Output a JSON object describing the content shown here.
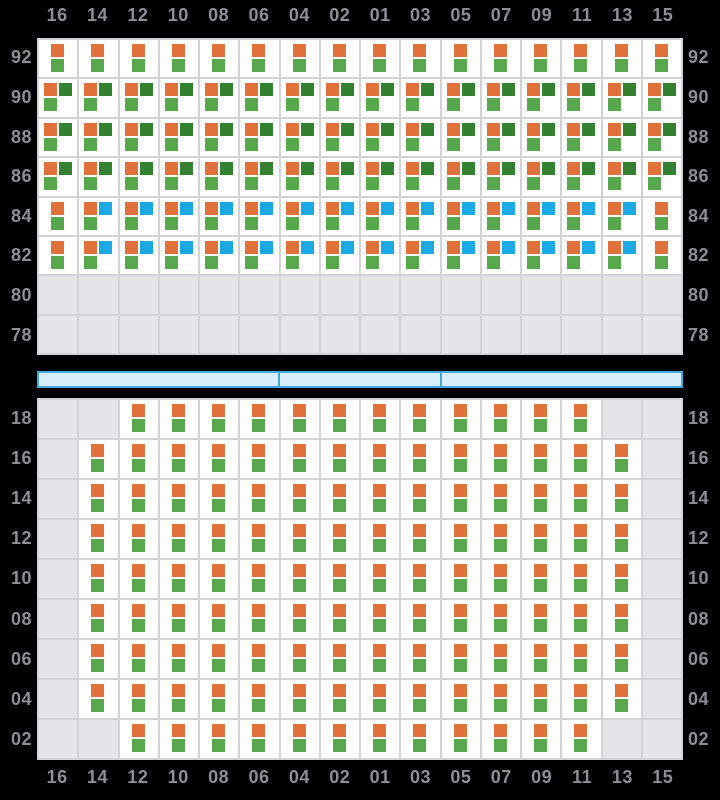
{
  "colors": {
    "background": "#000000",
    "label": "#8e8e94",
    "grid_line": "#d3d3d7",
    "cell_bg": "#ffffff",
    "empty_cell": "#e5e5e8",
    "orange": "#e0713b",
    "green": "#57a84d",
    "darkgreen": "#338131",
    "blue": "#1aa9e3",
    "hatch_fill": "#d9eefb",
    "hatch_border": "#41a9db"
  },
  "columns": [
    "16",
    "14",
    "12",
    "10",
    "08",
    "06",
    "04",
    "02",
    "01",
    "03",
    "05",
    "07",
    "09",
    "11",
    "13",
    "15"
  ],
  "patterns": {
    "P": [
      [
        "orange",
        "center",
        0
      ],
      [
        "green",
        "center",
        1
      ]
    ],
    "G": [
      [
        "orange",
        "left",
        0
      ],
      [
        "darkgreen",
        "right",
        0
      ],
      [
        "green",
        "left",
        1
      ]
    ],
    "B": [
      [
        "orange",
        "left",
        0
      ],
      [
        "blue",
        "right",
        0
      ],
      [
        "green",
        "left",
        1
      ]
    ],
    ".": []
  },
  "top_section": {
    "tiers": [
      "92",
      "90",
      "88",
      "86",
      "84",
      "82",
      "80",
      "78"
    ],
    "rows": [
      "PPPPPPPPPPPPPPPP",
      "GGGGGGGGGGGGGGGG",
      "GGGGGGGGGGGGGGGG",
      "GGGGGGGGGGGGGGGG",
      "PBBBBBBBBBBBBBBP",
      "PBBBBBBBBBBBBBBP",
      "................",
      "................"
    ]
  },
  "bottom_section": {
    "tiers": [
      "18",
      "16",
      "14",
      "12",
      "10",
      "08",
      "06",
      "04",
      "02"
    ],
    "rows": [
      "..PPPPPPPPPPPP..",
      ".PPPPPPPPPPPPPP.",
      ".PPPPPPPPPPPPPP.",
      ".PPPPPPPPPPPPPP.",
      ".PPPPPPPPPPPPPP.",
      ".PPPPPPPPPPPPPP.",
      ".PPPPPPPPPPPPPP.",
      ".PPPPPPPPPPPPPP.",
      "..PPPPPPPPPPPP.."
    ]
  },
  "hatch": {
    "segments": [
      {
        "span": 6
      },
      {
        "span": 4
      },
      {
        "span": 6
      }
    ]
  }
}
